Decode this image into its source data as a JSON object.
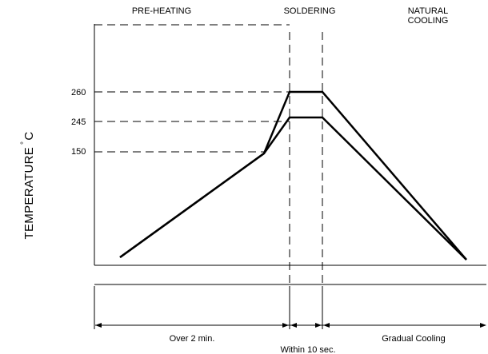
{
  "phases": {
    "preheating": "PRE-HEATING",
    "soldering": "SOLDERING",
    "cooling_line1": "NATURAL",
    "cooling_line2": "COOLING"
  },
  "y_axis": {
    "label": "TEMPERATURE",
    "unit_degree": "°",
    "unit_letter": "C"
  },
  "temperatures": {
    "t260": "260",
    "t245": "245",
    "t150": "150"
  },
  "durations": {
    "preheat": "Over 2 min.",
    "solder": "Within 10 sec.",
    "cooling": "Gradual Cooling"
  },
  "profile_data": {
    "type": "line",
    "series": [
      {
        "points": [
          [
            0,
            0
          ],
          [
            1,
            150
          ],
          [
            2,
            260
          ],
          [
            3,
            260
          ],
          [
            4,
            0
          ]
        ]
      },
      {
        "points": [
          [
            0,
            0
          ],
          [
            1,
            150
          ],
          [
            2,
            245
          ],
          [
            3,
            245
          ],
          [
            4,
            0
          ]
        ]
      }
    ],
    "reference_temperatures": [
      260,
      245,
      150
    ]
  }
}
